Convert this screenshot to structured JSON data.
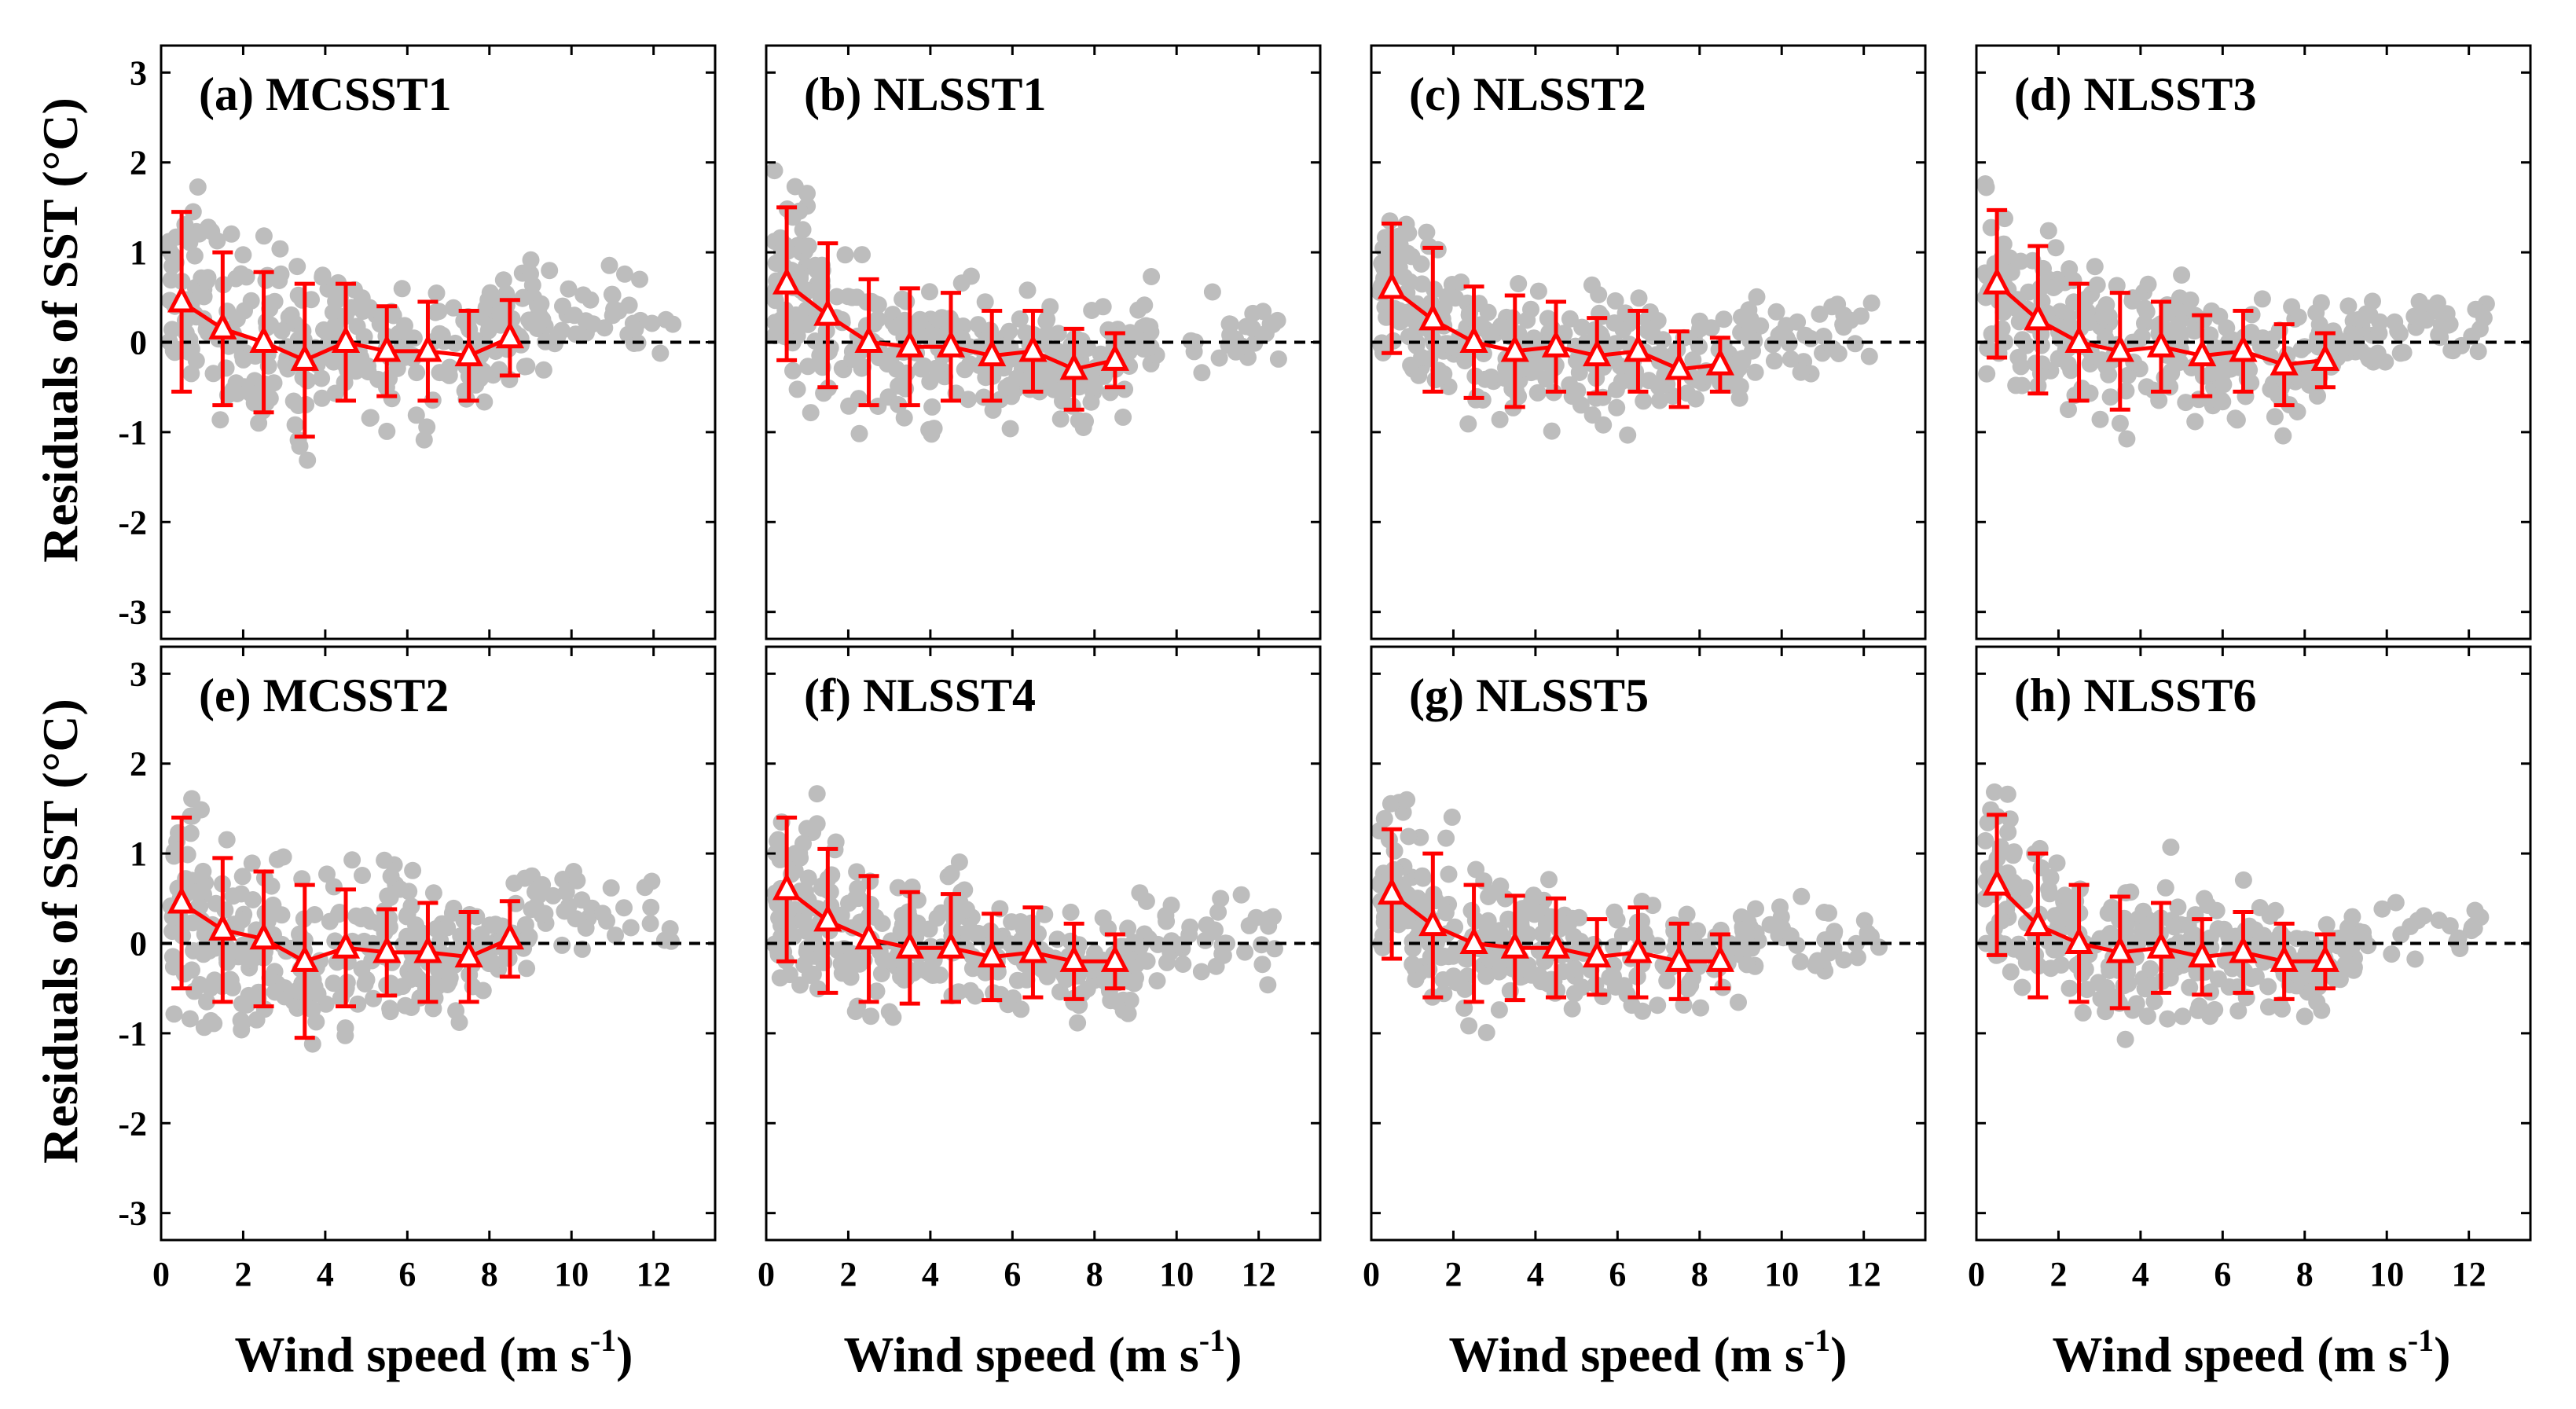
{
  "figure": {
    "ylabel_text": "Residuals of SST (",
    "ylabel_unit": "°C",
    "ylabel_close": ")",
    "xlabel_text": "Wind speed (m s",
    "xlabel_sup": "-1",
    "xlabel_close": ")"
  },
  "colors": {
    "scatter": "#bdbdbd",
    "binned_mean": "#ff0000",
    "zero_line": "#000000",
    "axes": "#000000"
  },
  "chart_data": [
    {
      "type": "scatter",
      "title": "(a) MCSST1",
      "xlabel": "Wind speed (m s-1)",
      "ylabel": "Residuals of SST (°C)",
      "xlim": [
        0,
        13.5
      ],
      "ylim": [
        -3.3,
        3.3
      ],
      "xticks": [
        "0",
        "2",
        "4",
        "6",
        "8",
        "10",
        "12"
      ],
      "yticks": [
        "3",
        "2",
        "1",
        "0",
        "-1",
        "-2",
        "-3"
      ],
      "reference_line_y": 0,
      "bin_centers": [
        0.5,
        1.5,
        2.5,
        3.5,
        4.5,
        5.5,
        6.5,
        7.5,
        8.5
      ],
      "mean": [
        0.45,
        0.15,
        0.0,
        -0.2,
        0.0,
        -0.1,
        -0.1,
        -0.15,
        0.05
      ],
      "std": [
        1.0,
        0.85,
        0.78,
        0.85,
        0.65,
        0.5,
        0.55,
        0.5,
        0.42
      ],
      "scatter_spread": 0.8,
      "scatter_seed": 11
    },
    {
      "type": "scatter",
      "title": "(b) NLSST1",
      "xlabel": "Wind speed (m s-1)",
      "ylabel": "Residuals of SST (°C)",
      "xlim": [
        0,
        13.5
      ],
      "ylim": [
        -3.3,
        3.3
      ],
      "xticks": [
        "0",
        "2",
        "4",
        "6",
        "8",
        "10",
        "12"
      ],
      "yticks": [
        "3",
        "2",
        "1",
        "0",
        "-1",
        "-2",
        "-3"
      ],
      "reference_line_y": 0,
      "bin_centers": [
        0.5,
        1.5,
        2.5,
        3.5,
        4.5,
        5.5,
        6.5,
        7.5,
        8.5
      ],
      "mean": [
        0.65,
        0.3,
        0.0,
        -0.05,
        -0.05,
        -0.15,
        -0.1,
        -0.3,
        -0.2
      ],
      "std": [
        0.85,
        0.8,
        0.7,
        0.65,
        0.6,
        0.5,
        0.45,
        0.45,
        0.3
      ],
      "scatter_spread": 0.7,
      "scatter_seed": 23
    },
    {
      "type": "scatter",
      "title": "(c) NLSST2",
      "xlabel": "Wind speed (m s-1)",
      "ylabel": "Residuals of SST (°C)",
      "xlim": [
        0,
        13.5
      ],
      "ylim": [
        -3.3,
        3.3
      ],
      "xticks": [
        "0",
        "2",
        "4",
        "6",
        "8",
        "10",
        "12"
      ],
      "yticks": [
        "3",
        "2",
        "1",
        "0",
        "-1",
        "-2",
        "-3"
      ],
      "reference_line_y": 0,
      "bin_centers": [
        0.5,
        1.5,
        2.5,
        3.5,
        4.5,
        5.5,
        6.5,
        7.5,
        8.5
      ],
      "mean": [
        0.6,
        0.25,
        0.0,
        -0.1,
        -0.05,
        -0.15,
        -0.1,
        -0.3,
        -0.25
      ],
      "std": [
        0.72,
        0.8,
        0.62,
        0.62,
        0.5,
        0.42,
        0.45,
        0.42,
        0.3
      ],
      "scatter_spread": 0.65,
      "scatter_seed": 37
    },
    {
      "type": "scatter",
      "title": "(d) NLSST3",
      "xlabel": "Wind speed (m s-1)",
      "ylabel": "Residuals of SST (°C)",
      "xlim": [
        0,
        13.5
      ],
      "ylim": [
        -3.3,
        3.3
      ],
      "xticks": [
        "0",
        "2",
        "4",
        "6",
        "8",
        "10",
        "12"
      ],
      "yticks": [
        "3",
        "2",
        "1",
        "0",
        "-1",
        "-2",
        "-3"
      ],
      "reference_line_y": 0,
      "bin_centers": [
        0.5,
        1.5,
        2.5,
        3.5,
        4.5,
        5.5,
        6.5,
        7.5,
        8.5
      ],
      "mean": [
        0.65,
        0.25,
        0.0,
        -0.1,
        -0.05,
        -0.15,
        -0.1,
        -0.25,
        -0.2
      ],
      "std": [
        0.82,
        0.82,
        0.65,
        0.65,
        0.5,
        0.45,
        0.45,
        0.45,
        0.3
      ],
      "scatter_spread": 0.65,
      "scatter_seed": 41
    },
    {
      "type": "scatter",
      "title": "(e) MCSST2",
      "xlabel": "Wind speed (m s-1)",
      "ylabel": "Residuals of SST (°C)",
      "xlim": [
        0,
        13.5
      ],
      "ylim": [
        -3.3,
        3.3
      ],
      "xticks": [
        "0",
        "2",
        "4",
        "6",
        "8",
        "10",
        "12"
      ],
      "yticks": [
        "3",
        "2",
        "1",
        "0",
        "-1",
        "-2",
        "-3"
      ],
      "reference_line_y": 0,
      "bin_centers": [
        0.5,
        1.5,
        2.5,
        3.5,
        4.5,
        5.5,
        6.5,
        7.5,
        8.5
      ],
      "mean": [
        0.45,
        0.15,
        0.05,
        -0.2,
        -0.05,
        -0.1,
        -0.1,
        -0.15,
        0.05
      ],
      "std": [
        0.95,
        0.8,
        0.75,
        0.85,
        0.65,
        0.48,
        0.55,
        0.5,
        0.42
      ],
      "scatter_spread": 0.8,
      "scatter_seed": 53
    },
    {
      "type": "scatter",
      "title": "(f) NLSST4",
      "xlabel": "Wind speed (m s-1)",
      "ylabel": "Residuals of SST (°C)",
      "xlim": [
        0,
        13.5
      ],
      "ylim": [
        -3.3,
        3.3
      ],
      "xticks": [
        "0",
        "2",
        "4",
        "6",
        "8",
        "10",
        "12"
      ],
      "yticks": [
        "3",
        "2",
        "1",
        "0",
        "-1",
        "-2",
        "-3"
      ],
      "reference_line_y": 0,
      "bin_centers": [
        0.5,
        1.5,
        2.5,
        3.5,
        4.5,
        5.5,
        6.5,
        7.5,
        8.5
      ],
      "mean": [
        0.6,
        0.25,
        0.05,
        -0.05,
        -0.05,
        -0.15,
        -0.1,
        -0.2,
        -0.2
      ],
      "std": [
        0.8,
        0.8,
        0.7,
        0.62,
        0.6,
        0.48,
        0.5,
        0.42,
        0.3
      ],
      "scatter_spread": 0.7,
      "scatter_seed": 67
    },
    {
      "type": "scatter",
      "title": "(g) NLSST5",
      "xlabel": "Wind speed (m s-1)",
      "ylabel": "Residuals of SST (°C)",
      "xlim": [
        0,
        13.5
      ],
      "ylim": [
        -3.3,
        3.3
      ],
      "xticks": [
        "0",
        "2",
        "4",
        "6",
        "8",
        "10",
        "12"
      ],
      "yticks": [
        "3",
        "2",
        "1",
        "0",
        "-1",
        "-2",
        "-3"
      ],
      "reference_line_y": 0,
      "bin_centers": [
        0.5,
        1.5,
        2.5,
        3.5,
        4.5,
        5.5,
        6.5,
        7.5,
        8.5
      ],
      "mean": [
        0.55,
        0.2,
        0.0,
        -0.05,
        -0.05,
        -0.15,
        -0.1,
        -0.2,
        -0.2
      ],
      "std": [
        0.72,
        0.8,
        0.65,
        0.58,
        0.55,
        0.42,
        0.5,
        0.42,
        0.3
      ],
      "scatter_spread": 0.65,
      "scatter_seed": 79
    },
    {
      "type": "scatter",
      "title": "(h) NLSST6",
      "xlabel": "Wind speed (m s-1)",
      "ylabel": "Residuals of SST (°C)",
      "xlim": [
        0,
        13.5
      ],
      "ylim": [
        -3.3,
        3.3
      ],
      "xticks": [
        "0",
        "2",
        "4",
        "6",
        "8",
        "10",
        "12"
      ],
      "yticks": [
        "3",
        "2",
        "1",
        "0",
        "-1",
        "-2",
        "-3"
      ],
      "reference_line_y": 0,
      "bin_centers": [
        0.5,
        1.5,
        2.5,
        3.5,
        4.5,
        5.5,
        6.5,
        7.5,
        8.5
      ],
      "mean": [
        0.65,
        0.2,
        0.0,
        -0.1,
        -0.05,
        -0.15,
        -0.1,
        -0.2,
        -0.2
      ],
      "std": [
        0.78,
        0.8,
        0.65,
        0.62,
        0.5,
        0.42,
        0.45,
        0.42,
        0.3
      ],
      "scatter_spread": 0.65,
      "scatter_seed": 91
    }
  ]
}
